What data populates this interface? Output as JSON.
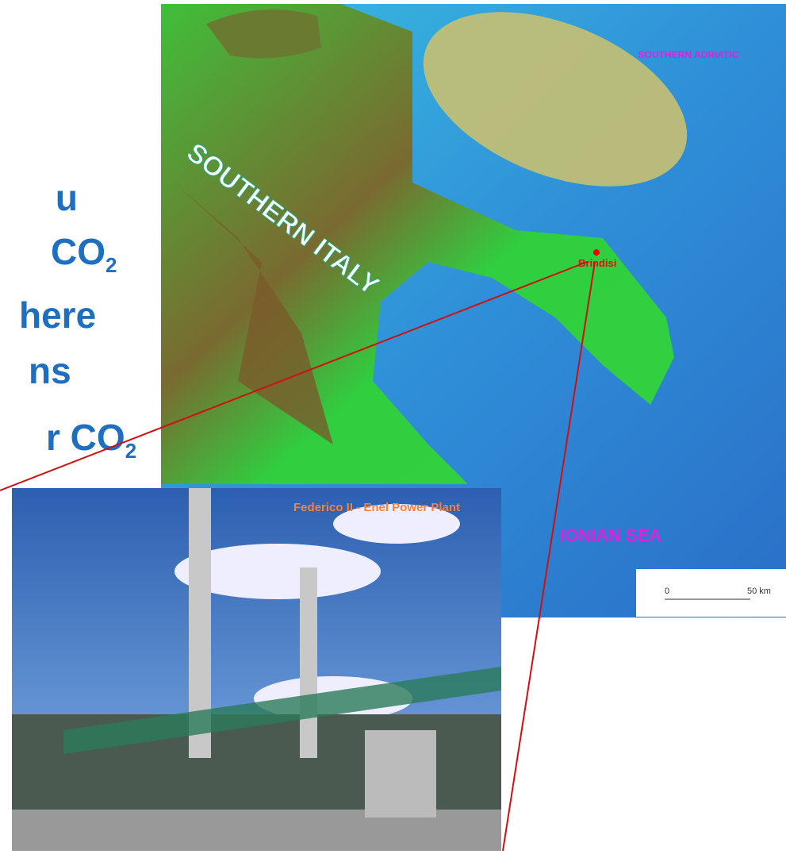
{
  "slide_text": {
    "lines": [
      {
        "text": "u"
      },
      {
        "text": "CO",
        "sub": "2"
      },
      {
        "text": "here"
      },
      {
        "text": "ns"
      },
      {
        "text": "r CO",
        "sub": "2"
      }
    ]
  },
  "map": {
    "region_label": "SOUTHERN ITALY",
    "adriatic_label": "SOUTHERN ADRIATIC",
    "ionian_label": "IONIAN SEA",
    "city_label": "Brindisi",
    "scale_start": "0",
    "scale_end": "50 km"
  },
  "photo": {
    "caption": "Federico II - Enel Power Plant"
  }
}
